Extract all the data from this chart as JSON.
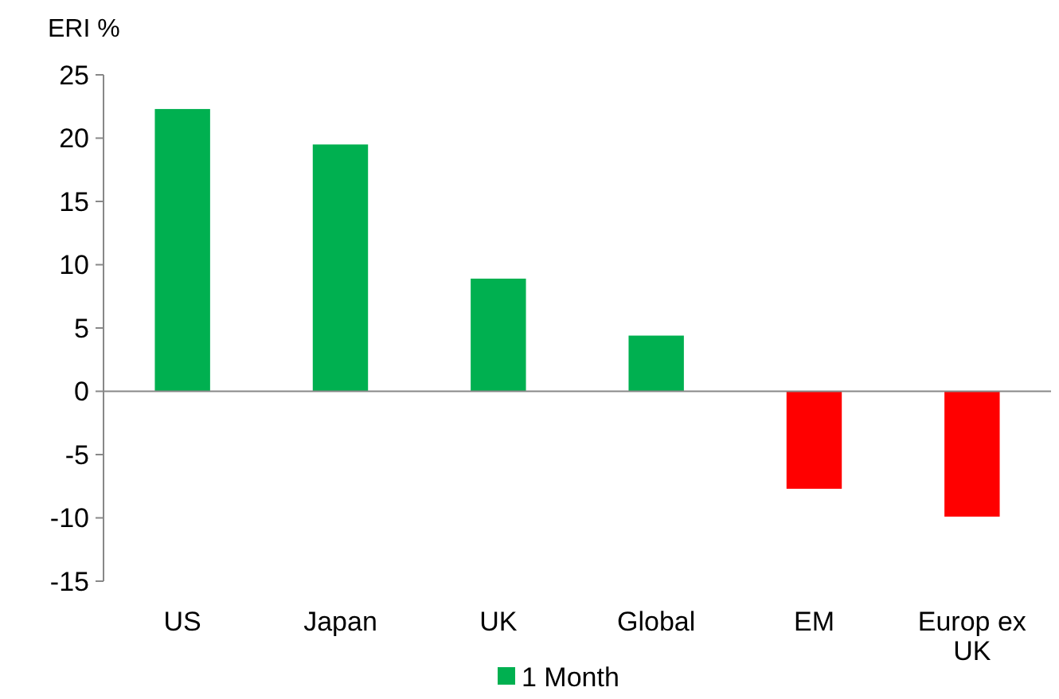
{
  "chart_data": {
    "type": "bar",
    "ylabel": "ERI %",
    "categories": [
      "US",
      "Japan",
      "UK",
      "Global",
      "EM",
      "Europ ex UK"
    ],
    "series": [
      {
        "name": "1 Month",
        "color": "#00b050",
        "colors": [
          "#00b050",
          "#00b050",
          "#00b050",
          "#00b050",
          "#ff0000",
          "#ff0000"
        ],
        "values": [
          22.3,
          19.5,
          8.9,
          4.4,
          -7.7,
          -9.9
        ]
      }
    ],
    "ylim": [
      -15,
      25
    ],
    "yticks": [
      -15,
      -10,
      -5,
      0,
      5,
      10,
      15,
      20,
      25
    ],
    "legend": "bottom"
  }
}
